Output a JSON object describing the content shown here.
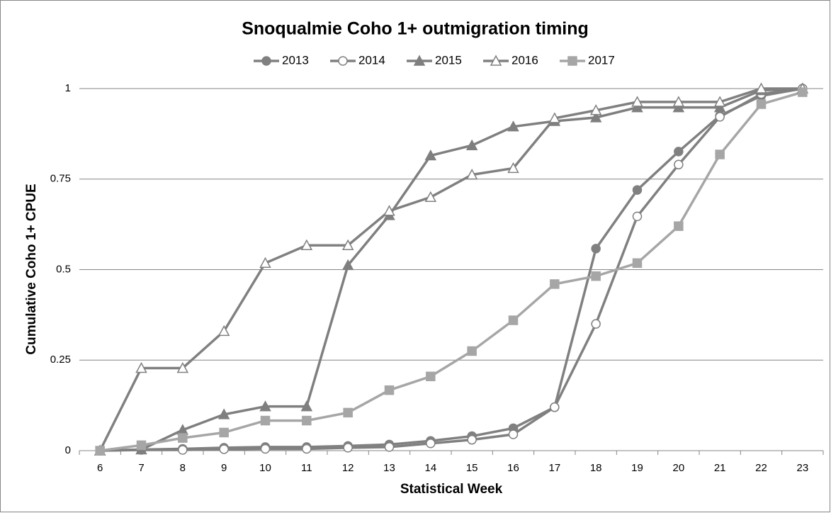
{
  "chart_data": {
    "type": "line",
    "title": "Snoqualmie Coho 1+ outmigration timing",
    "x_label": "Statistical Week",
    "y_label": "Cumulative Coho 1+ CPUE",
    "categories": [
      "6",
      "7",
      "8",
      "9",
      "10",
      "11",
      "12",
      "13",
      "14",
      "15",
      "16",
      "17",
      "18",
      "19",
      "20",
      "21",
      "22",
      "23"
    ],
    "series": [
      {
        "name": "2013",
        "color": "#808080",
        "marker": "circle",
        "marker_filled": true,
        "values": [
          0,
          0.003,
          0.005,
          0.008,
          0.01,
          0.01,
          0.013,
          0.017,
          0.027,
          0.04,
          0.062,
          0.12,
          0.558,
          0.72,
          0.826,
          0.925,
          0.98,
          1.0
        ]
      },
      {
        "name": "2014",
        "color": "#808080",
        "marker": "circle",
        "marker_filled": false,
        "values": [
          0,
          0.002,
          0.002,
          0.004,
          0.005,
          0.005,
          0.008,
          0.01,
          0.02,
          0.03,
          0.045,
          0.12,
          0.35,
          0.647,
          0.79,
          0.922,
          0.985,
          1.0
        ]
      },
      {
        "name": "2015",
        "color": "#7f7f7f",
        "marker": "triangle",
        "marker_filled": true,
        "values": [
          0,
          0.003,
          0.057,
          0.1,
          0.122,
          0.122,
          0.512,
          0.65,
          0.815,
          0.843,
          0.895,
          0.91,
          0.92,
          0.948,
          0.948,
          0.948,
          0.995,
          1.0
        ]
      },
      {
        "name": "2016",
        "color": "#808080",
        "marker": "triangle",
        "marker_filled": false,
        "values": [
          0,
          0.228,
          0.228,
          0.33,
          0.518,
          0.567,
          0.567,
          0.662,
          0.7,
          0.762,
          0.78,
          0.918,
          0.94,
          0.963,
          0.963,
          0.963,
          1.0,
          1.0
        ]
      },
      {
        "name": "2017",
        "color": "#a6a6a6",
        "marker": "square",
        "marker_filled": true,
        "values": [
          0,
          0.015,
          0.035,
          0.05,
          0.083,
          0.083,
          0.105,
          0.167,
          0.205,
          0.275,
          0.36,
          0.46,
          0.482,
          0.518,
          0.62,
          0.818,
          0.957,
          0.99
        ]
      }
    ],
    "ylim": [
      0,
      1
    ],
    "yticks": [
      0,
      0.25,
      0.5,
      0.75,
      1
    ],
    "grid": true,
    "legend": "top"
  }
}
